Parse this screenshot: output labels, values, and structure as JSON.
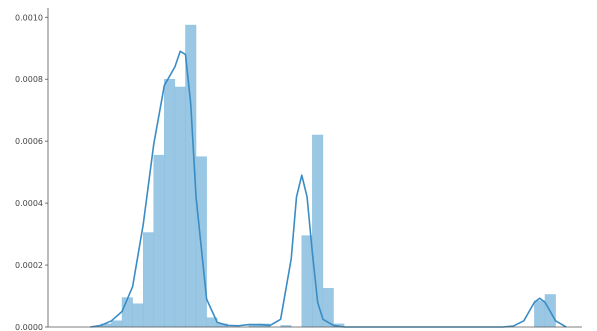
{
  "chart_data": {
    "type": "bar",
    "title": "",
    "xlabel": "",
    "ylabel": "",
    "xlim": [
      -2000,
      48500
    ],
    "ylim": [
      0,
      0.00103
    ],
    "yticks": [
      0.0,
      0.0002,
      0.0004,
      0.0006,
      0.0008,
      0.001
    ],
    "ytick_labels": [
      "0.0000",
      "0.0002",
      "0.0004",
      "0.0006",
      "0.0008",
      "0.0010"
    ],
    "grid": false,
    "legend": "none",
    "bar_color": "#9ac8e4",
    "bar_edge_color": "#86bcdd",
    "kde_color": "#3a8cc4",
    "axis_color": "#555555",
    "histogram": {
      "bin_edges": [
        2000,
        3000,
        4000,
        5000,
        6000,
        7000,
        8000,
        9000,
        10000,
        11000,
        12000,
        13000,
        14000,
        15000,
        16000,
        17000,
        18000,
        19000,
        20000,
        21000,
        22000,
        23000,
        24000,
        25000,
        26000,
        27000,
        28000,
        29000,
        30000,
        31000,
        32000,
        33000,
        34000,
        35000,
        36000,
        37000,
        38000,
        39000,
        40000,
        41000,
        42000,
        43000,
        44000,
        45000,
        46000,
        47000
      ],
      "values": [
        0.0,
        1e-05,
        2e-05,
        9.5e-05,
        7.5e-05,
        0.000305,
        0.000555,
        0.0008,
        0.000775,
        0.000975,
        0.00055,
        3e-05,
        1e-05,
        0.0,
        0.0,
        5e-06,
        1e-05,
        0.0,
        5e-06,
        0.0,
        0.000295,
        0.00062,
        0.000125,
        1e-05,
        0.0,
        0.0,
        0.0,
        0.0,
        0.0,
        0.0,
        0.0,
        0.0,
        0.0,
        0.0,
        0.0,
        0.0,
        0.0,
        0.0,
        0.0,
        0.0,
        0.0,
        0.0,
        8.5e-05,
        0.000105,
        0.0
      ]
    },
    "kde": {
      "x": [
        2000,
        3000,
        4000,
        5000,
        6000,
        7000,
        8000,
        9000,
        10000,
        10500,
        11000,
        11500,
        12000,
        13000,
        14000,
        15000,
        16000,
        17000,
        18000,
        19000,
        20000,
        21000,
        21500,
        22000,
        22500,
        23000,
        23500,
        24000,
        25000,
        26000,
        28000,
        30000,
        32000,
        34000,
        36000,
        38000,
        40000,
        41000,
        42000,
        43000,
        43500,
        44000,
        44500,
        45000,
        45500,
        46000,
        47000
      ],
      "y": [
        0.0,
        5e-06,
        2e-05,
        5e-05,
        0.00013,
        0.00033,
        0.00059,
        0.00078,
        0.00084,
        0.00089,
        0.00088,
        0.00072,
        0.00042,
        9e-05,
        1.5e-05,
        5e-06,
        4e-06,
        8e-06,
        8e-06,
        5e-06,
        2.5e-05,
        0.00022,
        0.00042,
        0.00049,
        0.00042,
        0.00024,
        8e-05,
        2.5e-05,
        5e-06,
        0.0,
        0.0,
        0.0,
        0.0,
        0.0,
        0.0,
        0.0,
        0.0,
        0.0,
        3e-06,
        2e-05,
        5e-05,
        8e-05,
        9.3e-05,
        8e-05,
        5e-05,
        2e-05,
        0.0
      ]
    }
  }
}
